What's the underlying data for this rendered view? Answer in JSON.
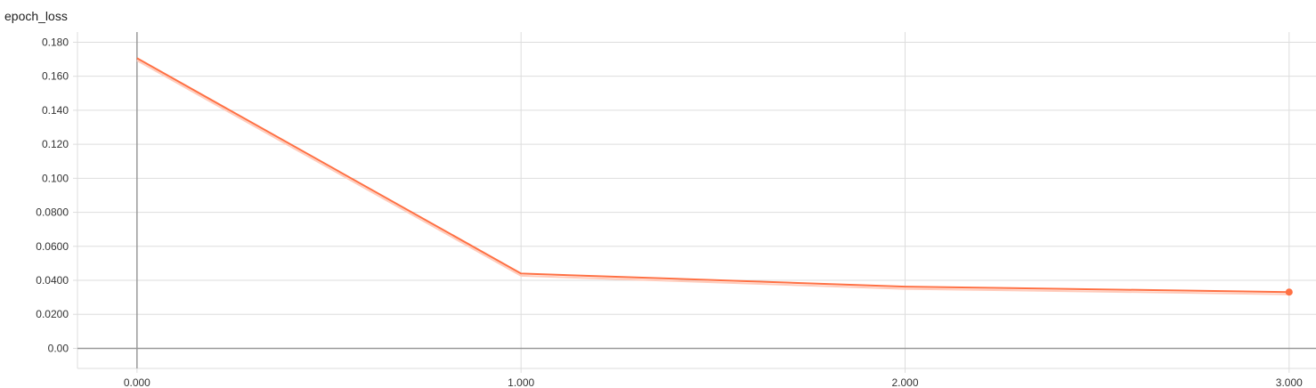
{
  "chart_data": {
    "type": "line",
    "title": "epoch_loss",
    "xlabel": "",
    "ylabel": "",
    "xlim": [
      -0.155,
      3.07
    ],
    "ylim": [
      -0.0118,
      0.186
    ],
    "grid": true,
    "x_ticks": [
      0,
      1,
      2,
      3
    ],
    "x_tick_labels": [
      "0.000",
      "1.000",
      "2.000",
      "3.000"
    ],
    "y_ticks": [
      0,
      0.02,
      0.04,
      0.06,
      0.08,
      0.1,
      0.12,
      0.14,
      0.16,
      0.18
    ],
    "y_tick_labels": [
      "0.00",
      "0.0200",
      "0.0400",
      "0.0600",
      "0.0800",
      "0.100",
      "0.120",
      "0.140",
      "0.160",
      "0.180"
    ],
    "series": [
      {
        "name": "epoch_loss",
        "color": "#ff7043",
        "x": [
          0,
          1,
          2,
          3
        ],
        "values": [
          0.1706,
          0.044,
          0.0363,
          0.0331
        ]
      }
    ]
  },
  "colors": {
    "grid": "#dddddd",
    "axis": "#999999",
    "line": "#ff7043",
    "raw_line": "#ffccbc"
  }
}
